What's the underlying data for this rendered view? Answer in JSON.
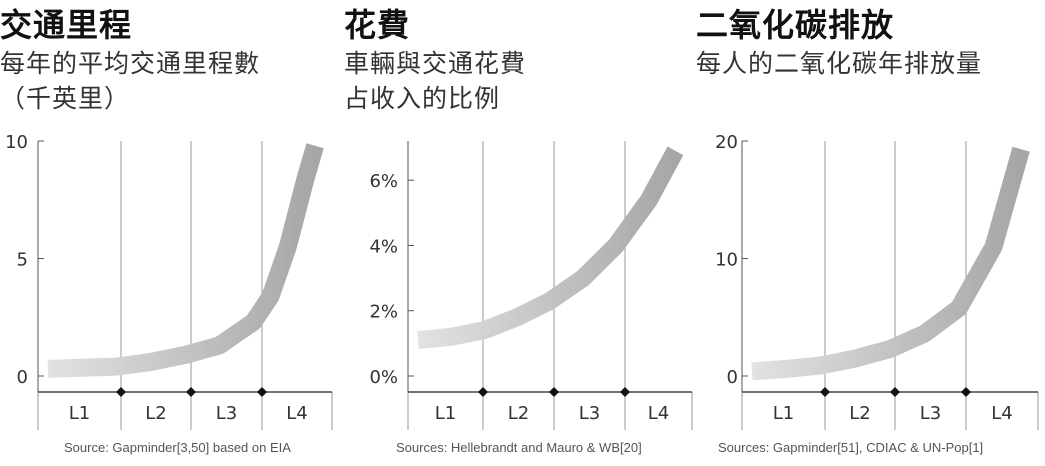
{
  "chart_data": [
    {
      "type": "area",
      "title": "交通里程",
      "subtitle": [
        "每年的平均交通里程數",
        "（千英里）"
      ],
      "categories": [
        "L1",
        "L2",
        "L3",
        "L4"
      ],
      "y_ticks": [
        "0",
        "5",
        "10"
      ],
      "ylim": [
        0,
        10
      ],
      "x": [
        0,
        0.5,
        1,
        1.5,
        2,
        2.5,
        3,
        3.25,
        3.5,
        3.75,
        3.9
      ],
      "values": [
        0.3,
        0.35,
        0.4,
        0.6,
        0.9,
        1.3,
        2.3,
        3.4,
        5.5,
        8.3,
        9.8
      ],
      "source": "Source: Gapminder[3,50] based on EIA"
    },
    {
      "type": "area",
      "title": "花費",
      "subtitle": [
        "車輛與交通花費",
        "占收入的比例"
      ],
      "categories": [
        "L1",
        "L2",
        "L3",
        "L4"
      ],
      "y_ticks": [
        "0%",
        "2%",
        "4%",
        "6%"
      ],
      "ylim": [
        0,
        7.2
      ],
      "x": [
        0,
        0.5,
        1,
        1.5,
        2,
        2.5,
        3,
        3.5,
        3.9
      ],
      "values": [
        1.1,
        1.2,
        1.4,
        1.8,
        2.3,
        3.0,
        4.0,
        5.4,
        6.9
      ],
      "source": "Sources: Hellebrandt and Mauro & WB[20]"
    },
    {
      "type": "area",
      "title": "二氧化碳排放",
      "subtitle": [
        "每人的二氧化碳年排放量"
      ],
      "categories": [
        "L1",
        "L2",
        "L3",
        "L4"
      ],
      "y_ticks": [
        "0",
        "10",
        "20"
      ],
      "ylim": [
        0,
        20
      ],
      "x": [
        0,
        0.5,
        1,
        1.5,
        2,
        2.5,
        3,
        3.5,
        3.9
      ],
      "values": [
        0.4,
        0.6,
        0.9,
        1.5,
        2.3,
        3.6,
        5.8,
        11,
        19.3
      ],
      "source": "Sources: Gapminder[51], CDIAC & UN-Pop[1]"
    }
  ]
}
